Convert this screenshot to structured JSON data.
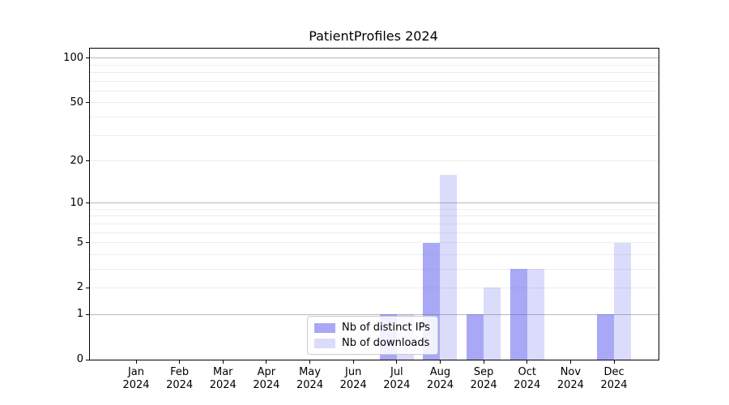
{
  "title": "PatientProfiles 2024",
  "chart_data": {
    "type": "bar",
    "title": "PatientProfiles 2024",
    "categories": [
      "Jan 2024",
      "Feb 2024",
      "Mar 2024",
      "Apr 2024",
      "May 2024",
      "Jun 2024",
      "Jul 2024",
      "Aug 2024",
      "Sep 2024",
      "Oct 2024",
      "Nov 2024",
      "Dec 2024"
    ],
    "series": [
      {
        "name": "Nb of distinct IPs",
        "color": "rgba(90,90,240,0.53)",
        "values": [
          0,
          0,
          0,
          0,
          0,
          0,
          1,
          5,
          1,
          3,
          0,
          1
        ]
      },
      {
        "name": "Nb of downloads",
        "color": "rgba(90,90,240,0.22)",
        "values": [
          0,
          0,
          0,
          0,
          0,
          0,
          1,
          16,
          2,
          3,
          0,
          5
        ]
      }
    ],
    "xlabel": "",
    "ylabel": "",
    "yscale": "log1p",
    "ylim": [
      0,
      116
    ],
    "ytick_values": [
      0,
      1,
      2,
      5,
      10,
      20,
      50,
      100
    ],
    "ytick_labels": [
      "0",
      "1",
      "2",
      "5",
      "10",
      "20",
      "50",
      "100"
    ],
    "gridlines_major": [
      1,
      10,
      100
    ],
    "gridlines_minor": [
      2,
      3,
      4,
      5,
      6,
      7,
      8,
      9,
      20,
      30,
      40,
      50,
      60,
      70,
      80,
      90
    ],
    "legend": {
      "location": "lower-center-inside",
      "entries": [
        "Nb of distinct IPs",
        "Nb of downloads"
      ]
    }
  },
  "colors": {
    "grid_major": "#b8b8b8",
    "grid_minor": "#ededed",
    "spine": "#000000",
    "background": "#ffffff"
  }
}
